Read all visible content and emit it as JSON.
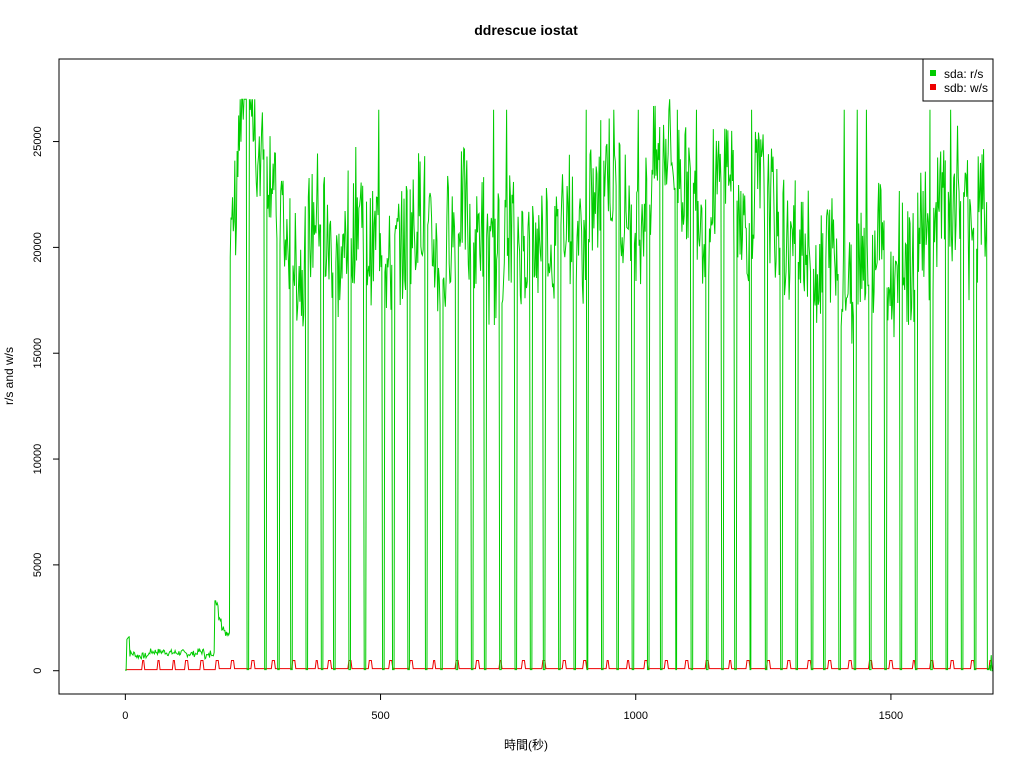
{
  "chart_data": {
    "type": "line",
    "title": "ddrescue iostat",
    "xlabel": "時間(秒)",
    "ylabel": "r/s and w/s",
    "xlim": [
      -130,
      1700
    ],
    "ylim": [
      -1100,
      28900
    ],
    "x_ticks": [
      0,
      500,
      1000,
      1500
    ],
    "y_ticks": [
      0,
      5000,
      10000,
      15000,
      20000,
      25000
    ],
    "grid": false,
    "legend": {
      "position": "top-right"
    },
    "series": [
      {
        "name": "sda: r/s",
        "color": "#00cc00",
        "x": [
          0,
          5,
          10,
          30,
          60,
          100,
          130,
          150,
          160,
          170,
          180,
          185,
          190,
          200,
          210,
          215,
          220,
          225,
          230,
          240,
          250,
          260,
          270,
          280,
          300,
          320,
          340,
          360,
          380,
          400,
          420,
          440,
          460,
          480,
          500,
          520,
          540,
          560,
          580,
          600,
          620,
          640,
          660,
          680,
          700,
          720,
          740,
          760,
          780,
          800,
          820,
          840,
          860,
          880,
          900,
          920,
          940,
          960,
          980,
          1000,
          1020,
          1040,
          1060,
          1080,
          1100,
          1120,
          1140,
          1160,
          1180,
          1200,
          1220,
          1240,
          1260,
          1280,
          1300,
          1320,
          1340,
          1360,
          1380,
          1400,
          1420,
          1440,
          1460,
          1480,
          1500,
          1520,
          1540,
          1560,
          1580,
          1600,
          1620,
          1640,
          1660,
          1680,
          1700
        ],
        "y": [
          0,
          1600,
          800,
          700,
          900,
          850,
          800,
          900,
          700,
          850,
          3200,
          2500,
          2000,
          1800,
          20000,
          22000,
          24000,
          25000,
          26500,
          26800,
          26900,
          23000,
          26000,
          24000,
          22000,
          20000,
          19000,
          21000,
          22000,
          20000,
          19000,
          21000,
          22000,
          20000,
          21000,
          19000,
          20000,
          21000,
          22000,
          20000,
          19000,
          21000,
          22000,
          20000,
          21000,
          19000,
          20000,
          21000,
          20000,
          20000,
          21000,
          20000,
          22000,
          21000,
          20000,
          22000,
          24000,
          23000,
          22000,
          21000,
          22000,
          24000,
          25000,
          24000,
          23000,
          22000,
          21000,
          23000,
          24000,
          22000,
          21000,
          23000,
          22000,
          21000,
          20000,
          21000,
          20000,
          19000,
          20000,
          19000,
          18000,
          20000,
          19000,
          21000,
          18000,
          20000,
          19000,
          21000,
          20000,
          22000,
          21000,
          23000,
          20000,
          22000,
          0
        ]
      },
      {
        "name": "sdb: w/s",
        "color": "#ee0000",
        "x": [
          0,
          100,
          200,
          300,
          400,
          500,
          600,
          700,
          800,
          900,
          1000,
          1100,
          1200,
          1300,
          1400,
          1500,
          1600,
          1700
        ],
        "y": [
          50,
          100,
          100,
          100,
          100,
          100,
          100,
          100,
          100,
          100,
          100,
          100,
          100,
          100,
          100,
          100,
          100,
          0
        ]
      }
    ],
    "series_notes": {
      "sda_dips_to_zero_at_x": [
        240,
        275,
        300,
        325,
        355,
        385,
        410,
        440,
        470,
        505,
        525,
        555,
        590,
        620,
        650,
        680,
        705,
        735,
        765,
        795,
        820,
        850,
        880,
        905,
        935,
        965,
        995,
        1025,
        1050,
        1080,
        1110,
        1140,
        1170,
        1195,
        1225,
        1255,
        1285,
        1315,
        1345,
        1370,
        1400,
        1430,
        1460,
        1490,
        1520,
        1550,
        1580,
        1610,
        1640,
        1665,
        1690
      ],
      "sdb_spikes_at_x": [
        35,
        65,
        95,
        120,
        150,
        180,
        210,
        250,
        290,
        330,
        375,
        400,
        440,
        480,
        520,
        560,
        605,
        650,
        690,
        735,
        780,
        820,
        860,
        900,
        945,
        985,
        1020,
        1060,
        1100,
        1140,
        1185,
        1220,
        1260,
        1300,
        1340,
        1380,
        1420,
        1460,
        1500,
        1545,
        1580,
        1620,
        1660,
        1695
      ]
    }
  }
}
